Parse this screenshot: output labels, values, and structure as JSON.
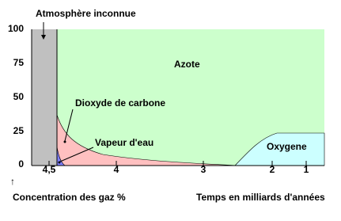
{
  "title": "Atmosphère inconnue",
  "y_axis": {
    "label": "Concentration des gaz %",
    "arrow": "↑",
    "ticks": [
      "100",
      "75",
      "50",
      "25",
      "0"
    ]
  },
  "x_axis": {
    "label": "Temps en milliards d'années",
    "ticks": [
      "4,5",
      "4",
      "3",
      "2",
      "1"
    ]
  },
  "regions": {
    "nitrogen": "Azote",
    "carbon_dioxide": "Dioxyde de carbone",
    "water_vapor": "Vapeur d'eau",
    "oxygen": "Oxygene"
  }
}
